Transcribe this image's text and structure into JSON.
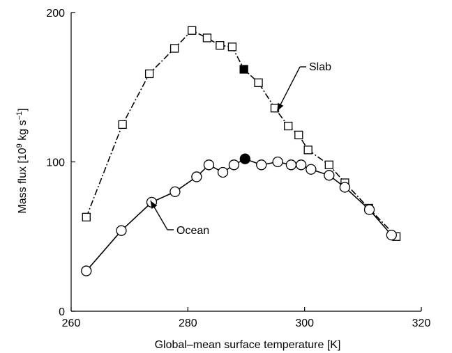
{
  "chart_data": {
    "type": "line",
    "title": "",
    "xlabel": "Global–mean surface temperature [K]",
    "ylabel": {
      "prefix": "Mass flux [10",
      "exp1": "9",
      "middle": " kg s",
      "exp2": "−1",
      "suffix": "]"
    },
    "xlim": [
      260,
      320
    ],
    "ylim": [
      0,
      200
    ],
    "xticks": [
      "260",
      "280",
      "300",
      "320"
    ],
    "yticks": [
      "0",
      "100",
      "200"
    ],
    "grid": false,
    "legend": "none",
    "series": [
      {
        "name": "Slab",
        "marker": "square",
        "line_style": "dash-dot",
        "color": "#000000",
        "x": [
          262.6,
          268.8,
          273.4,
          277.7,
          280.7,
          283.3,
          285.5,
          287.6,
          289.6,
          292.1,
          294.9,
          297.2,
          299.0,
          300.6,
          304.2,
          306.9,
          311.0,
          315.7
        ],
        "y": [
          63,
          125,
          159,
          176,
          188,
          183,
          178,
          177,
          162,
          153,
          136,
          124,
          118,
          108,
          98,
          86,
          69,
          50
        ],
        "highlight_index": 8
      },
      {
        "name": "Ocean",
        "marker": "circle",
        "line_style": "solid",
        "color": "#000000",
        "x": [
          262.6,
          268.6,
          273.8,
          277.8,
          281.5,
          283.6,
          286.0,
          287.9,
          289.8,
          292.6,
          295.4,
          297.7,
          299.4,
          301.1,
          304.2,
          306.9,
          311.1,
          314.9
        ],
        "y": [
          27,
          54,
          73,
          80,
          90,
          98,
          93,
          98,
          102,
          98,
          100,
          98,
          98,
          95,
          91,
          83,
          68,
          51
        ],
        "highlight_index": 8
      }
    ],
    "annotations": [
      {
        "text": "Slab",
        "target_series": "Slab",
        "point_x": 295.3,
        "point_y": 134
      },
      {
        "text": "Ocean",
        "target_series": "Ocean",
        "point_x": 273.6,
        "point_y": 74
      }
    ]
  }
}
